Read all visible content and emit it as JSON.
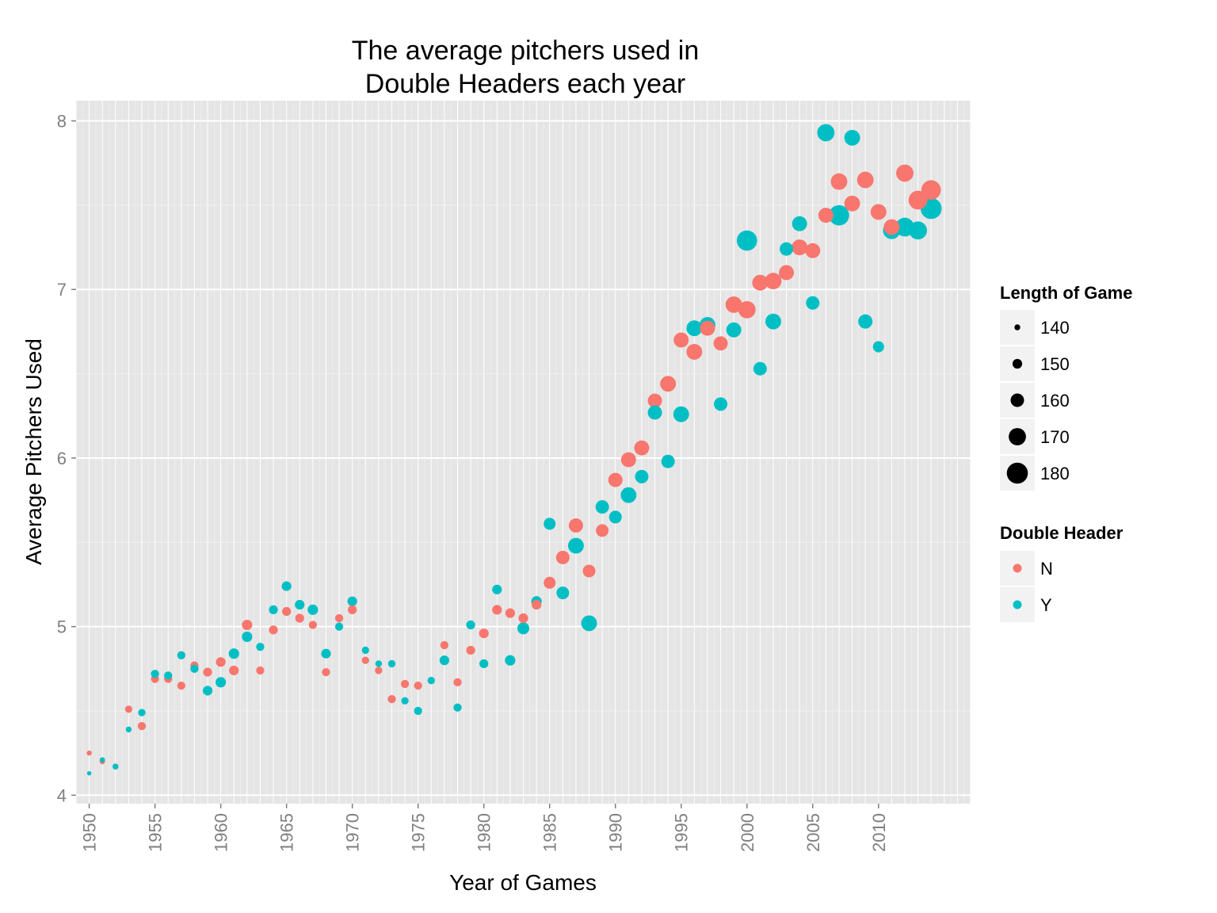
{
  "chart_data": {
    "type": "scatter",
    "title_lines": [
      "The average pitchers used in",
      "Double Headers each year"
    ],
    "xlabel": "Year of Games",
    "ylabel": "Average Pitchers Used",
    "xlim": [
      1949,
      2017
    ],
    "ylim": [
      3.95,
      8.12
    ],
    "x_ticks": [
      "1950",
      "1955",
      "1960",
      "1965",
      "1970",
      "1975",
      "1980",
      "1985",
      "1990",
      "1995",
      "2000",
      "2005",
      "2010"
    ],
    "y_ticks": [
      "4",
      "5",
      "6",
      "7",
      "8"
    ],
    "grid": true,
    "legend_position": "right",
    "size_legend": {
      "title": "Length of Game",
      "values": [
        "140",
        "150",
        "160",
        "170",
        "180"
      ]
    },
    "color_legend": {
      "title": "Double Header",
      "values": [
        "N",
        "Y"
      ]
    },
    "colors": {
      "N": "#f8766d",
      "Y": "#00bfc4",
      "panel": "#e5e5e5",
      "grid": "#ffffff"
    },
    "series": [
      {
        "name": "N",
        "points": [
          {
            "x": 1950,
            "y": 4.25,
            "size": 138
          },
          {
            "x": 1951,
            "y": 4.2,
            "size": 139
          },
          {
            "x": 1952,
            "y": 4.17,
            "size": 140
          },
          {
            "x": 1953,
            "y": 4.51,
            "size": 144
          },
          {
            "x": 1954,
            "y": 4.41,
            "size": 146
          },
          {
            "x": 1955,
            "y": 4.69,
            "size": 146
          },
          {
            "x": 1956,
            "y": 4.69,
            "size": 146
          },
          {
            "x": 1957,
            "y": 4.65,
            "size": 146
          },
          {
            "x": 1958,
            "y": 4.77,
            "size": 146
          },
          {
            "x": 1959,
            "y": 4.73,
            "size": 148
          },
          {
            "x": 1960,
            "y": 4.79,
            "size": 150
          },
          {
            "x": 1961,
            "y": 4.74,
            "size": 150
          },
          {
            "x": 1962,
            "y": 5.01,
            "size": 152
          },
          {
            "x": 1963,
            "y": 4.74,
            "size": 146
          },
          {
            "x": 1964,
            "y": 4.98,
            "size": 148
          },
          {
            "x": 1965,
            "y": 5.09,
            "size": 148
          },
          {
            "x": 1966,
            "y": 5.05,
            "size": 148
          },
          {
            "x": 1967,
            "y": 5.01,
            "size": 146
          },
          {
            "x": 1968,
            "y": 4.73,
            "size": 146
          },
          {
            "x": 1969,
            "y": 5.05,
            "size": 146
          },
          {
            "x": 1970,
            "y": 5.1,
            "size": 148
          },
          {
            "x": 1971,
            "y": 4.8,
            "size": 144
          },
          {
            "x": 1972,
            "y": 4.74,
            "size": 144
          },
          {
            "x": 1973,
            "y": 4.57,
            "size": 146
          },
          {
            "x": 1974,
            "y": 4.66,
            "size": 146
          },
          {
            "x": 1975,
            "y": 4.65,
            "size": 146
          },
          {
            "x": 1977,
            "y": 4.89,
            "size": 146
          },
          {
            "x": 1978,
            "y": 4.67,
            "size": 146
          },
          {
            "x": 1979,
            "y": 4.86,
            "size": 148
          },
          {
            "x": 1980,
            "y": 4.96,
            "size": 150
          },
          {
            "x": 1981,
            "y": 5.1,
            "size": 150
          },
          {
            "x": 1982,
            "y": 5.08,
            "size": 150
          },
          {
            "x": 1983,
            "y": 5.05,
            "size": 150
          },
          {
            "x": 1984,
            "y": 5.13,
            "size": 150
          },
          {
            "x": 1985,
            "y": 5.26,
            "size": 156
          },
          {
            "x": 1986,
            "y": 5.41,
            "size": 160
          },
          {
            "x": 1987,
            "y": 5.6,
            "size": 162
          },
          {
            "x": 1988,
            "y": 5.33,
            "size": 158
          },
          {
            "x": 1989,
            "y": 5.57,
            "size": 158
          },
          {
            "x": 1990,
            "y": 5.87,
            "size": 162
          },
          {
            "x": 1991,
            "y": 5.99,
            "size": 164
          },
          {
            "x": 1992,
            "y": 6.06,
            "size": 164
          },
          {
            "x": 1993,
            "y": 6.34,
            "size": 162
          },
          {
            "x": 1994,
            "y": 6.44,
            "size": 166
          },
          {
            "x": 1995,
            "y": 6.7,
            "size": 164
          },
          {
            "x": 1996,
            "y": 6.63,
            "size": 166
          },
          {
            "x": 1997,
            "y": 6.77,
            "size": 164
          },
          {
            "x": 1998,
            "y": 6.68,
            "size": 162
          },
          {
            "x": 1999,
            "y": 6.91,
            "size": 168
          },
          {
            "x": 2000,
            "y": 6.88,
            "size": 170
          },
          {
            "x": 2001,
            "y": 7.04,
            "size": 166
          },
          {
            "x": 2002,
            "y": 7.05,
            "size": 168
          },
          {
            "x": 2003,
            "y": 7.1,
            "size": 164
          },
          {
            "x": 2004,
            "y": 7.25,
            "size": 166
          },
          {
            "x": 2005,
            "y": 7.23,
            "size": 164
          },
          {
            "x": 2006,
            "y": 7.44,
            "size": 164
          },
          {
            "x": 2007,
            "y": 7.64,
            "size": 168
          },
          {
            "x": 2008,
            "y": 7.51,
            "size": 166
          },
          {
            "x": 2009,
            "y": 7.65,
            "size": 168
          },
          {
            "x": 2010,
            "y": 7.46,
            "size": 166
          },
          {
            "x": 2011,
            "y": 7.37,
            "size": 166
          },
          {
            "x": 2012,
            "y": 7.69,
            "size": 170
          },
          {
            "x": 2013,
            "y": 7.53,
            "size": 174
          },
          {
            "x": 2014,
            "y": 7.59,
            "size": 176
          }
        ]
      },
      {
        "name": "Y",
        "points": [
          {
            "x": 1950,
            "y": 4.13,
            "size": 136
          },
          {
            "x": 1951,
            "y": 4.21,
            "size": 138
          },
          {
            "x": 1952,
            "y": 4.17,
            "size": 140
          },
          {
            "x": 1953,
            "y": 4.39,
            "size": 140
          },
          {
            "x": 1954,
            "y": 4.49,
            "size": 144
          },
          {
            "x": 1955,
            "y": 4.72,
            "size": 146
          },
          {
            "x": 1956,
            "y": 4.71,
            "size": 146
          },
          {
            "x": 1957,
            "y": 4.83,
            "size": 146
          },
          {
            "x": 1958,
            "y": 4.75,
            "size": 146
          },
          {
            "x": 1959,
            "y": 4.62,
            "size": 150
          },
          {
            "x": 1960,
            "y": 4.67,
            "size": 152
          },
          {
            "x": 1961,
            "y": 4.84,
            "size": 152
          },
          {
            "x": 1962,
            "y": 4.94,
            "size": 152
          },
          {
            "x": 1963,
            "y": 4.88,
            "size": 146
          },
          {
            "x": 1964,
            "y": 5.1,
            "size": 148
          },
          {
            "x": 1965,
            "y": 5.24,
            "size": 150
          },
          {
            "x": 1966,
            "y": 5.13,
            "size": 150
          },
          {
            "x": 1967,
            "y": 5.1,
            "size": 152
          },
          {
            "x": 1968,
            "y": 4.84,
            "size": 150
          },
          {
            "x": 1969,
            "y": 5.0,
            "size": 146
          },
          {
            "x": 1970,
            "y": 5.15,
            "size": 150
          },
          {
            "x": 1971,
            "y": 4.86,
            "size": 144
          },
          {
            "x": 1972,
            "y": 4.78,
            "size": 142
          },
          {
            "x": 1973,
            "y": 4.78,
            "size": 144
          },
          {
            "x": 1974,
            "y": 4.56,
            "size": 144
          },
          {
            "x": 1975,
            "y": 4.5,
            "size": 146
          },
          {
            "x": 1976,
            "y": 4.68,
            "size": 144
          },
          {
            "x": 1977,
            "y": 4.8,
            "size": 150
          },
          {
            "x": 1978,
            "y": 4.52,
            "size": 146
          },
          {
            "x": 1979,
            "y": 5.01,
            "size": 148
          },
          {
            "x": 1980,
            "y": 4.78,
            "size": 148
          },
          {
            "x": 1981,
            "y": 5.22,
            "size": 150
          },
          {
            "x": 1982,
            "y": 4.8,
            "size": 152
          },
          {
            "x": 1983,
            "y": 4.99,
            "size": 156
          },
          {
            "x": 1984,
            "y": 5.15,
            "size": 152
          },
          {
            "x": 1985,
            "y": 5.61,
            "size": 156
          },
          {
            "x": 1986,
            "y": 5.2,
            "size": 158
          },
          {
            "x": 1987,
            "y": 5.48,
            "size": 166
          },
          {
            "x": 1988,
            "y": 5.02,
            "size": 166
          },
          {
            "x": 1989,
            "y": 5.71,
            "size": 160
          },
          {
            "x": 1990,
            "y": 5.65,
            "size": 158
          },
          {
            "x": 1991,
            "y": 5.78,
            "size": 166
          },
          {
            "x": 1992,
            "y": 5.89,
            "size": 160
          },
          {
            "x": 1993,
            "y": 6.27,
            "size": 162
          },
          {
            "x": 1994,
            "y": 5.98,
            "size": 160
          },
          {
            "x": 1995,
            "y": 6.26,
            "size": 166
          },
          {
            "x": 1996,
            "y": 6.77,
            "size": 166
          },
          {
            "x": 1997,
            "y": 6.79,
            "size": 166
          },
          {
            "x": 1998,
            "y": 6.32,
            "size": 160
          },
          {
            "x": 1999,
            "y": 6.76,
            "size": 164
          },
          {
            "x": 2000,
            "y": 7.29,
            "size": 178
          },
          {
            "x": 2001,
            "y": 6.53,
            "size": 160
          },
          {
            "x": 2002,
            "y": 6.81,
            "size": 166
          },
          {
            "x": 2003,
            "y": 7.24,
            "size": 160
          },
          {
            "x": 2004,
            "y": 7.39,
            "size": 164
          },
          {
            "x": 2005,
            "y": 6.92,
            "size": 160
          },
          {
            "x": 2006,
            "y": 7.93,
            "size": 170
          },
          {
            "x": 2007,
            "y": 7.44,
            "size": 178
          },
          {
            "x": 2008,
            "y": 7.9,
            "size": 166
          },
          {
            "x": 2009,
            "y": 6.81,
            "size": 162
          },
          {
            "x": 2010,
            "y": 6.66,
            "size": 154
          },
          {
            "x": 2011,
            "y": 7.35,
            "size": 170
          },
          {
            "x": 2012,
            "y": 7.37,
            "size": 174
          },
          {
            "x": 2013,
            "y": 7.35,
            "size": 172
          },
          {
            "x": 2014,
            "y": 7.48,
            "size": 180
          }
        ]
      }
    ]
  }
}
